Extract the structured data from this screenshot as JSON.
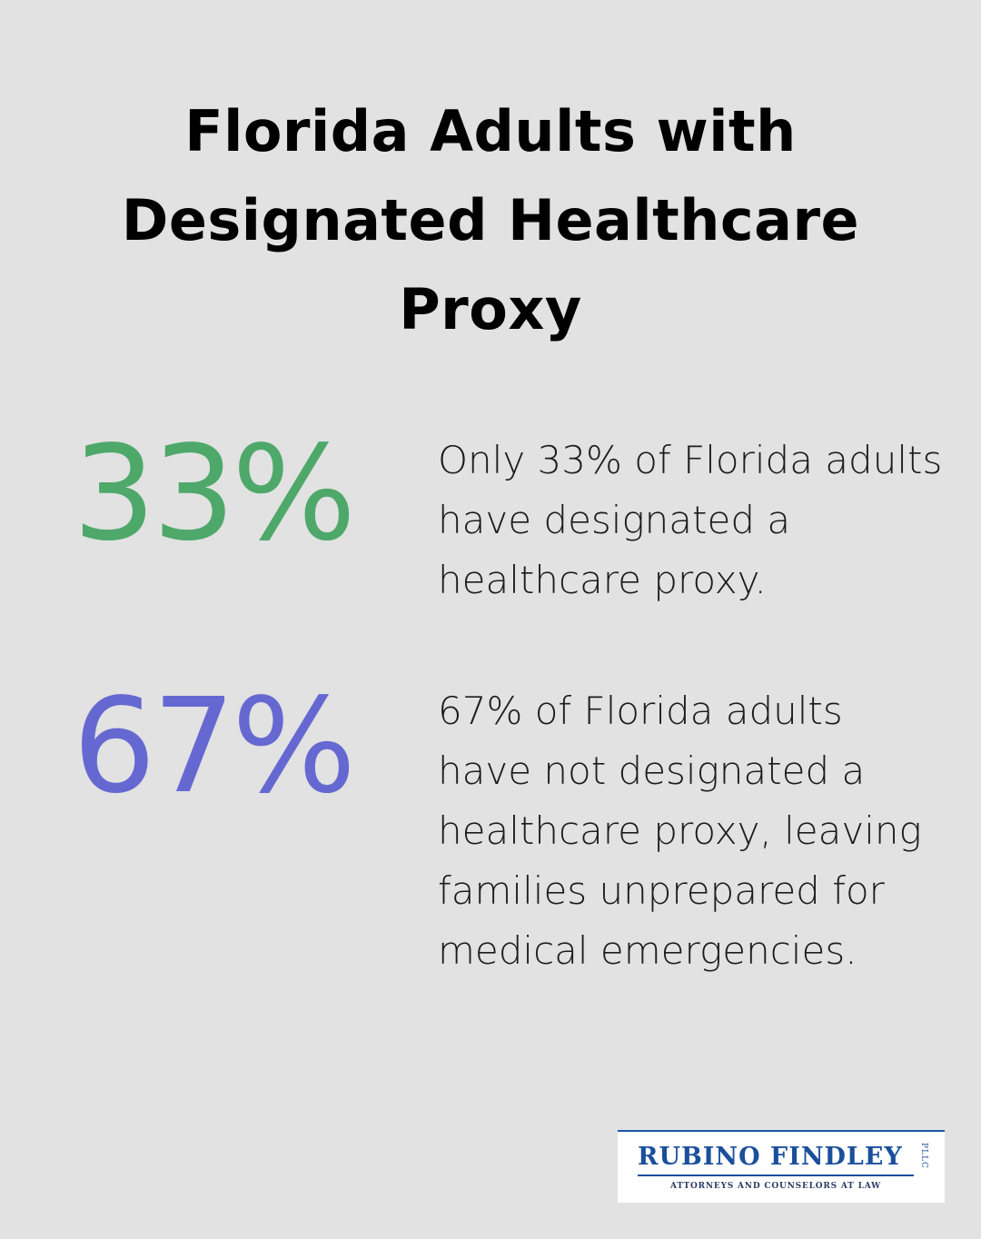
{
  "title": "Florida Adults with Designated Healthcare Proxy",
  "stats": [
    {
      "value": "33%",
      "color": "#4ea86a",
      "description": "Only 33% of Florida adults have designated a healthcare proxy."
    },
    {
      "value": "67%",
      "color": "#6668d2",
      "description": "67% of Florida adults have not designated a healthcare proxy, leaving families unprepared for medical emergencies."
    }
  ],
  "logo": {
    "name": "RUBINO FINDLEY",
    "suffix": "PLLC",
    "tagline": "ATTORNEYS AND COUNSELORS AT LAW",
    "color": "#1b4f9c"
  }
}
